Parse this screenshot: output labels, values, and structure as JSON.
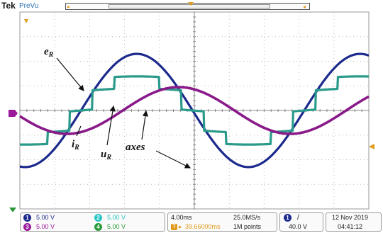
{
  "header": {
    "brand": "Tek",
    "mode": "PreVu"
  },
  "annotations": {
    "eR": {
      "main": "e",
      "sub": "R"
    },
    "uR": {
      "main": "u",
      "sub": "R"
    },
    "iR": {
      "main": "i",
      "sub": "R"
    },
    "axes": "axes"
  },
  "markers": {
    "ground_ch1": "1",
    "ground_ch4": "4"
  },
  "channels": [
    {
      "id": "1",
      "scale": "5.00 V",
      "color": "#1b2a8c"
    },
    {
      "id": "2",
      "scale": "5.00 V",
      "color": "#27c4c4"
    },
    {
      "id": "3",
      "scale": "5.00 V",
      "color": "#9a1a9a"
    },
    {
      "id": "4",
      "scale": "5.00 V",
      "color": "#2a9a3a"
    }
  ],
  "timebase": {
    "scale": "4.00ms",
    "offset": "39.66000ms",
    "sample_rate": "25.0MS/s",
    "record_length": "1M points"
  },
  "trigger": {
    "source": "1",
    "slope": "/",
    "level": "40.0 V"
  },
  "datetime": {
    "date": "12 Nov 2019",
    "time": "04:41:12"
  },
  "colors": {
    "grid": "#b8b8b8",
    "eR": "#1b2a8c",
    "uR": "#2a9a8a",
    "iR": "#8a1a8a",
    "trigger": "#e09a1c"
  },
  "chart_data": {
    "type": "line",
    "note_units": "divisions",
    "x_divisions": 10,
    "y_divisions": 8,
    "series": [
      {
        "name": "eR",
        "amplitude_div": 2.3,
        "period_div": 6.4,
        "phase_div": 1.75,
        "style": "smooth"
      },
      {
        "name": "uR",
        "amplitude_div": 1.45,
        "period_div": 6.4,
        "phase_div": 1.75,
        "style": "stepped",
        "steps_per_half_cycle": 5
      },
      {
        "name": "iR",
        "amplitude_div": 0.95,
        "period_div": 6.4,
        "phase_div": 2.95,
        "style": "smooth"
      }
    ]
  }
}
